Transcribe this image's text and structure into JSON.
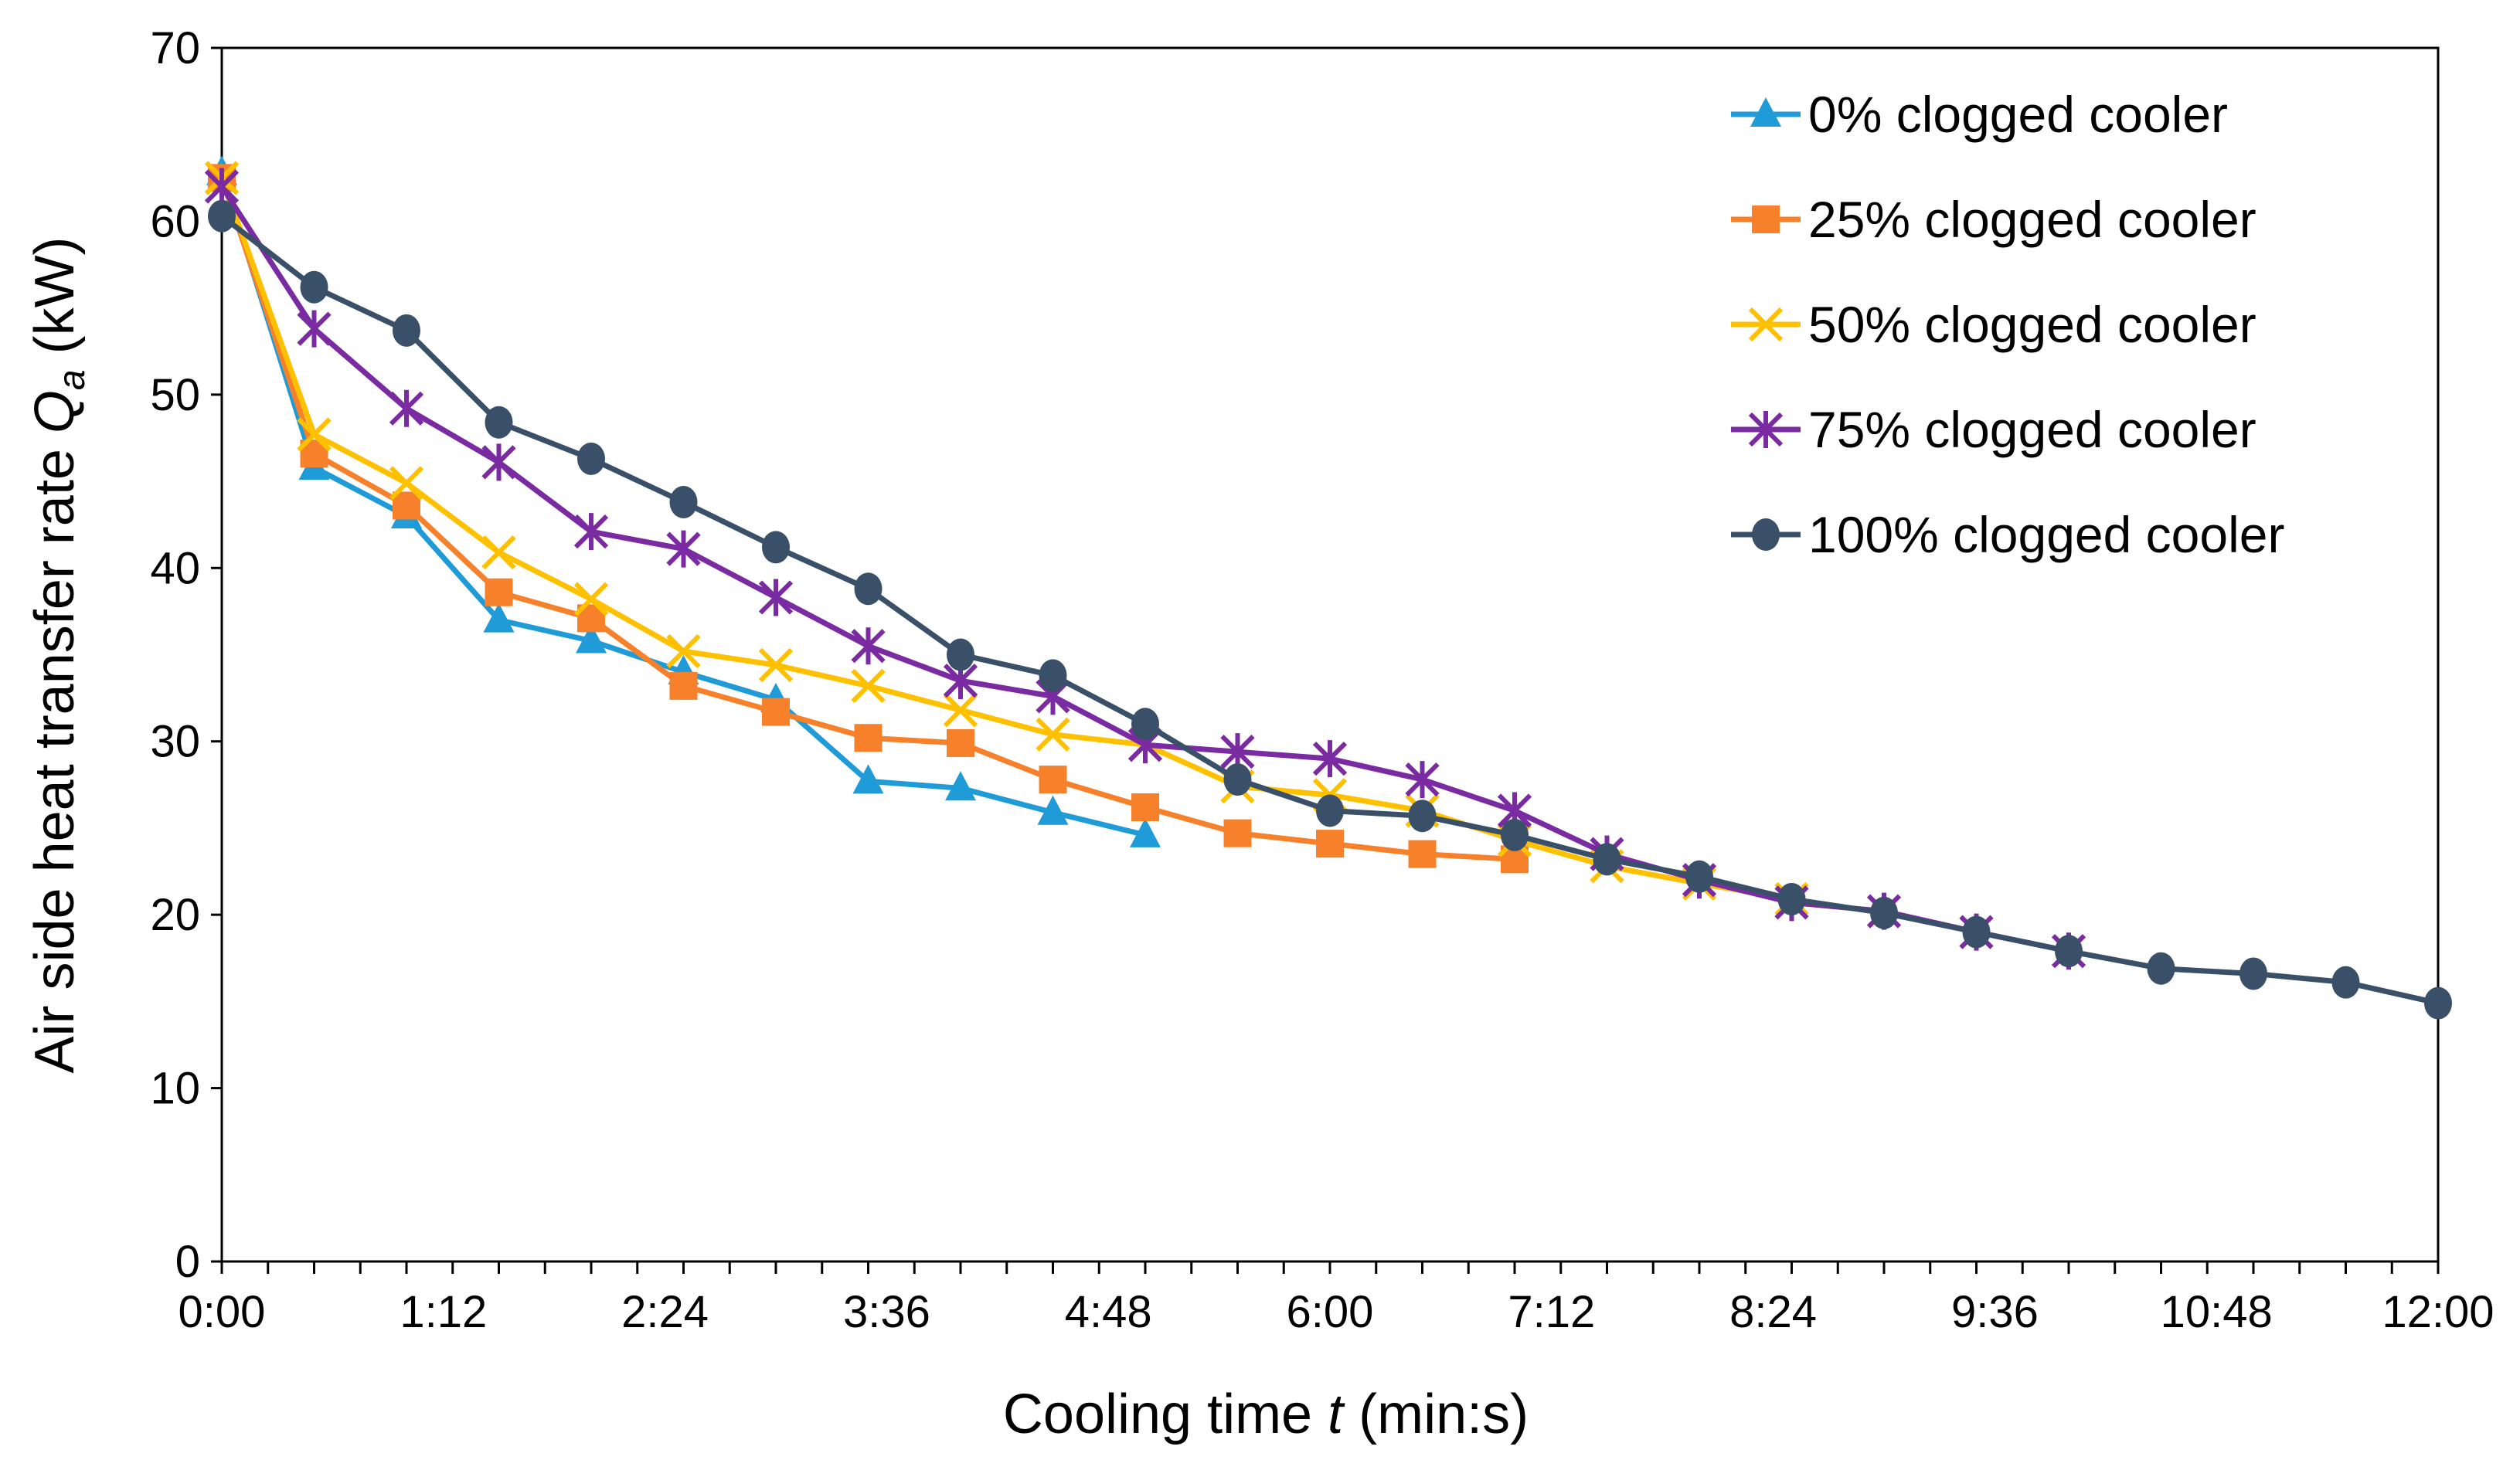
{
  "chart_data": {
    "type": "line",
    "title": "",
    "xlabel": "Cooling time t (min:s)",
    "xlabel_parts": [
      "Cooling time ",
      "t",
      " (min:s)"
    ],
    "ylabel_parts": [
      "Air side heat transfer rate ",
      "Q",
      "a",
      " (kW)"
    ],
    "ylabel": "Air side heat transfer rate Qa (kW)",
    "x_unit": "seconds",
    "xlim": [
      0,
      720
    ],
    "ylim": [
      0,
      70
    ],
    "x_tick_values": [
      0,
      72,
      144,
      216,
      288,
      360,
      432,
      504,
      576,
      648,
      720
    ],
    "x_tick_labels": [
      "0:00",
      "1:12",
      "2:24",
      "3:36",
      "4:48",
      "6:00",
      "7:12",
      "8:24",
      "9:36",
      "10:48",
      "12:00"
    ],
    "y_ticks": [
      0,
      10,
      20,
      30,
      40,
      50,
      60,
      70
    ],
    "grid": false,
    "legend_position": "top-right",
    "series": [
      {
        "name": "0% clogged cooler",
        "color": "#1F9BD7",
        "marker": "triangle",
        "x_step": 30,
        "values": [
          62.8,
          45.8,
          43.0,
          37.0,
          35.8,
          34.0,
          32.4,
          27.7,
          27.3,
          25.9,
          24.6
        ]
      },
      {
        "name": "25% clogged cooler",
        "color": "#F7802A",
        "marker": "square",
        "x_step": 30,
        "values": [
          62.5,
          46.6,
          43.6,
          38.6,
          37.1,
          33.2,
          31.7,
          30.2,
          29.9,
          27.8,
          26.2,
          24.7,
          24.1,
          23.5,
          23.2
        ]
      },
      {
        "name": "50% clogged cooler",
        "color": "#FFC000",
        "marker": "x",
        "x_step": 30,
        "values": [
          62.5,
          47.7,
          44.9,
          40.9,
          38.2,
          35.2,
          34.4,
          33.2,
          31.8,
          30.4,
          29.8,
          27.4,
          26.9,
          26.0,
          24.3,
          22.8,
          21.8,
          20.9
        ]
      },
      {
        "name": "75% clogged cooler",
        "color": "#7B2BA2",
        "marker": "asterisk",
        "x_step": 30,
        "values": [
          62.0,
          53.8,
          49.2,
          46.1,
          42.1,
          41.1,
          38.3,
          35.5,
          33.5,
          32.6,
          29.8,
          29.4,
          29.0,
          27.8,
          26.0,
          23.5,
          22.0,
          20.7,
          20.2,
          19.0,
          17.9
        ]
      },
      {
        "name": "100% clogged cooler",
        "color": "#3A5068",
        "marker": "circle",
        "x_step": 30,
        "values": [
          60.3,
          56.2,
          53.7,
          48.4,
          46.3,
          43.8,
          41.2,
          38.8,
          35.0,
          33.8,
          31.0,
          27.8,
          26.0,
          25.7,
          24.6,
          23.2,
          22.2,
          20.9,
          20.1,
          19.0,
          17.9,
          16.9,
          16.6,
          16.1,
          14.9
        ]
      }
    ]
  }
}
